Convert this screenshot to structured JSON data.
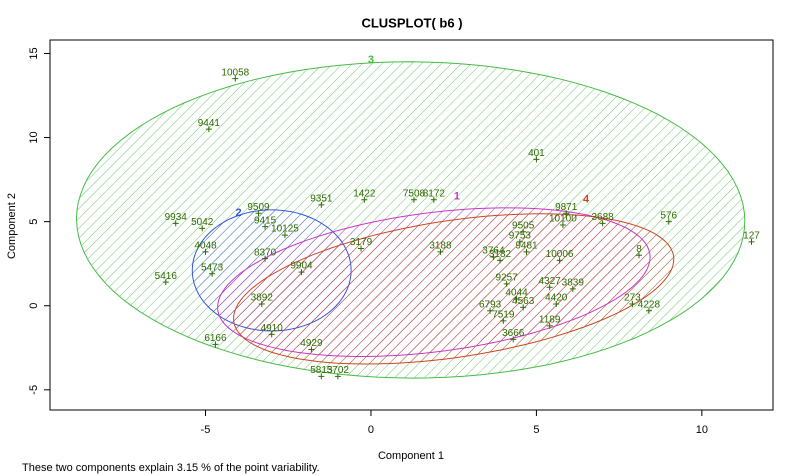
{
  "chart_data": {
    "type": "clusplot",
    "title": "CLUSPLOT( b6 )",
    "x_label": "Component 1",
    "y_label": "Component 2",
    "note": "These two components explain 3.15 % of the point variability.",
    "xlim": [
      -9.7,
      12.15
    ],
    "ylim": [
      -6.2,
      15.8
    ],
    "xticks": [
      -5,
      0,
      5,
      10
    ],
    "yticks": [
      -5,
      0,
      5,
      10,
      15
    ],
    "point_color": "#2d6b00",
    "clusters": [
      {
        "name": "3",
        "color": "#44bb44",
        "cx": 1.2,
        "cy": 5.1,
        "a": 10.1,
        "b": 9.4,
        "angle": -3,
        "label_x": 0,
        "label_y": 14.6
      },
      {
        "name": "2",
        "color": "#3355dd",
        "cx": -3,
        "cy": 2.1,
        "a": 2.4,
        "b": 3.6,
        "angle": 0,
        "label_x": -4,
        "label_y": 5.5
      },
      {
        "name": "1",
        "color": "#cc33cc",
        "cx": 1.9,
        "cy": 1.4,
        "a": 6.8,
        "b": 4.0,
        "angle": 20,
        "label_x": 2.6,
        "label_y": 6.5
      },
      {
        "name": "4",
        "color": "#cc4422",
        "cx": 2.5,
        "cy": 1.0,
        "a": 7.0,
        "b": 3.9,
        "angle": 22,
        "label_x": 6.5,
        "label_y": 6.3
      }
    ],
    "points": {
      "labels": [
        "10058",
        "9441",
        "401",
        "9934",
        "5042",
        "4048",
        "5416",
        "5473",
        "6166",
        "9509",
        "9415",
        "10125",
        "9351",
        "1422",
        "7508",
        "8172",
        "8370",
        "3179",
        "3188",
        "3764",
        "3182",
        "9505",
        "9753",
        "9481",
        "9871",
        "10100",
        "3688",
        "576",
        "127",
        "8",
        "10006",
        "9257",
        "4327",
        "3839",
        "4044",
        "4563",
        "4420",
        "273",
        "4228",
        "1189",
        "7519",
        "3666",
        "4910",
        "4929",
        "5813",
        "5702",
        "3892",
        "9904",
        "6793"
      ],
      "x": [
        -4.1,
        -4.9,
        5.0,
        -5.9,
        -5.1,
        -5.0,
        -6.2,
        -4.8,
        -4.7,
        -3.4,
        -3.2,
        -2.6,
        -1.5,
        -0.2,
        1.3,
        1.9,
        -3.2,
        -0.3,
        2.1,
        3.7,
        3.9,
        4.6,
        4.5,
        4.7,
        5.9,
        5.8,
        7.0,
        9.0,
        11.5,
        8.1,
        5.7,
        4.1,
        5.4,
        6.1,
        4.4,
        4.6,
        5.6,
        7.9,
        8.4,
        5.4,
        4.0,
        4.3,
        -3.0,
        -1.8,
        -1.5,
        -1.0,
        -3.3,
        -2.1,
        3.6
      ],
      "y": [
        13.5,
        10.5,
        8.7,
        4.9,
        4.6,
        3.2,
        1.4,
        1.9,
        -2.3,
        5.5,
        4.7,
        4.2,
        6.0,
        6.3,
        6.3,
        6.3,
        2.8,
        3.4,
        3.2,
        2.9,
        2.7,
        4.4,
        3.8,
        3.2,
        5.5,
        4.8,
        4.9,
        5.0,
        3.8,
        3.0,
        2.7,
        1.3,
        1.1,
        1.0,
        0.4,
        -0.1,
        0.1,
        0.1,
        -0.3,
        -1.2,
        -0.9,
        -2.0,
        -1.7,
        -2.6,
        -4.2,
        -4.2,
        0.1,
        2.0,
        -0.3
      ]
    }
  }
}
